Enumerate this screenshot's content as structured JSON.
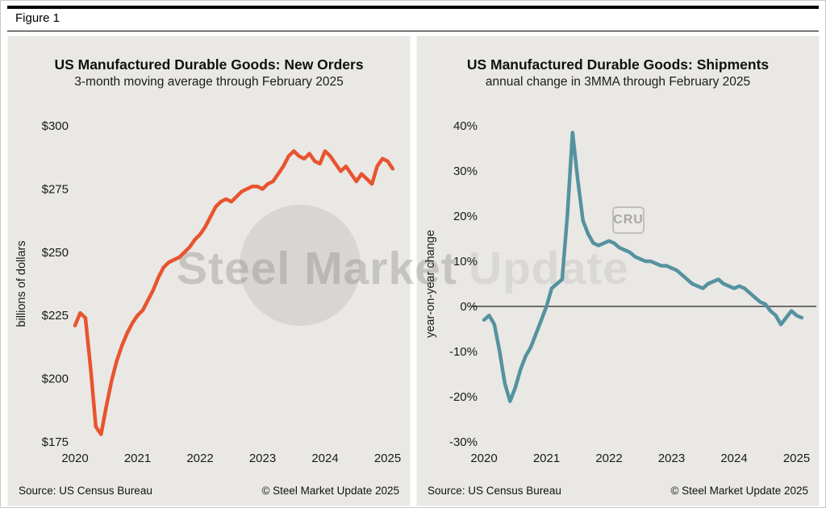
{
  "figure": {
    "label": "Figure 1"
  },
  "watermark": {
    "part1": "Steel Market",
    "part2": "Update",
    "cru": "CRU"
  },
  "chart_data": [
    {
      "type": "line",
      "title": "US Manufactured Durable Goods: New Orders",
      "subtitle": "3-month moving average through February 2025",
      "ylabel": "billions of dollars",
      "xlabel": "",
      "xlim": [
        2020,
        2025.35
      ],
      "ylim": [
        175,
        300
      ],
      "x_ticks": [
        2020,
        2021,
        2022,
        2023,
        2024,
        2025
      ],
      "x_tick_labels": [
        "2020",
        "2021",
        "2022",
        "2023",
        "2024",
        "2025"
      ],
      "y_ticks": [
        175,
        200,
        225,
        250,
        275,
        300
      ],
      "y_tick_labels": [
        "$175",
        "$200",
        "$225",
        "$250",
        "$275",
        "$300"
      ],
      "grid": false,
      "legend": "none",
      "zero_line": false,
      "line_color": "#e8542e",
      "source": "Source: US Census Bureau",
      "copyright": "© Steel Market Update 2025",
      "x": [
        2020.0,
        2020.083,
        2020.167,
        2020.25,
        2020.333,
        2020.417,
        2020.5,
        2020.583,
        2020.667,
        2020.75,
        2020.833,
        2020.917,
        2021.0,
        2021.083,
        2021.167,
        2021.25,
        2021.333,
        2021.417,
        2021.5,
        2021.583,
        2021.667,
        2021.75,
        2021.833,
        2021.917,
        2022.0,
        2022.083,
        2022.167,
        2022.25,
        2022.333,
        2022.417,
        2022.5,
        2022.583,
        2022.667,
        2022.75,
        2022.833,
        2022.917,
        2023.0,
        2023.083,
        2023.167,
        2023.25,
        2023.333,
        2023.417,
        2023.5,
        2023.583,
        2023.667,
        2023.75,
        2023.833,
        2023.917,
        2024.0,
        2024.083,
        2024.167,
        2024.25,
        2024.333,
        2024.417,
        2024.5,
        2024.583,
        2024.667,
        2024.75,
        2024.833,
        2024.917,
        2025.0,
        2025.083
      ],
      "values": [
        221,
        226,
        224,
        204,
        181,
        178,
        189,
        199,
        207,
        213,
        218,
        222,
        225,
        227,
        231,
        235,
        240,
        244,
        246,
        247,
        248,
        250,
        252,
        255,
        257,
        260,
        264,
        268,
        270,
        271,
        270,
        272,
        274,
        275,
        276,
        276,
        275,
        277,
        278,
        281,
        284,
        288,
        290,
        288,
        287,
        289,
        286,
        285,
        290,
        288,
        285,
        282,
        284,
        281,
        278,
        281,
        279,
        277,
        284,
        287,
        286,
        283
      ]
    },
    {
      "type": "line",
      "title": "US Manufactured Durable Goods: Shipments",
      "subtitle": "annual change in 3MMA through February 2025",
      "ylabel": "year-on-year change",
      "xlabel": "",
      "xlim": [
        2020,
        2025.35
      ],
      "ylim": [
        -30,
        40
      ],
      "x_ticks": [
        2020,
        2021,
        2022,
        2023,
        2024,
        2025
      ],
      "x_tick_labels": [
        "2020",
        "2021",
        "2022",
        "2023",
        "2024",
        "2025"
      ],
      "y_ticks": [
        -30,
        -20,
        -10,
        0,
        10,
        20,
        30,
        40
      ],
      "y_tick_labels": [
        "-30%",
        "-20%",
        "-10%",
        "0%",
        "10%",
        "20%",
        "30%",
        "40%"
      ],
      "grid": false,
      "legend": "none",
      "zero_line": true,
      "line_color": "#5592a0",
      "source": "Source: US Census Bureau",
      "copyright": "© Steel Market Update 2025",
      "x": [
        2020.0,
        2020.083,
        2020.167,
        2020.25,
        2020.333,
        2020.417,
        2020.5,
        2020.583,
        2020.667,
        2020.75,
        2020.833,
        2020.917,
        2021.0,
        2021.083,
        2021.167,
        2021.25,
        2021.333,
        2021.417,
        2021.5,
        2021.583,
        2021.667,
        2021.75,
        2021.833,
        2021.917,
        2022.0,
        2022.083,
        2022.167,
        2022.25,
        2022.333,
        2022.417,
        2022.5,
        2022.583,
        2022.667,
        2022.75,
        2022.833,
        2022.917,
        2023.0,
        2023.083,
        2023.167,
        2023.25,
        2023.333,
        2023.417,
        2023.5,
        2023.583,
        2023.667,
        2023.75,
        2023.833,
        2023.917,
        2024.0,
        2024.083,
        2024.167,
        2024.25,
        2024.333,
        2024.417,
        2024.5,
        2024.583,
        2024.667,
        2024.75,
        2024.833,
        2024.917,
        2025.0,
        2025.083
      ],
      "values": [
        -3,
        -2,
        -4,
        -10,
        -17,
        -21,
        -18,
        -14,
        -11,
        -9,
        -6,
        -3,
        0,
        4,
        5,
        6,
        20,
        38.5,
        28,
        19,
        16,
        14,
        13.5,
        14,
        14.5,
        14,
        13,
        12.5,
        12,
        11,
        10.5,
        10,
        10,
        9.5,
        9,
        9,
        8.5,
        8,
        7,
        6,
        5,
        4.5,
        4,
        5,
        5.5,
        6,
        5,
        4.5,
        4,
        4.5,
        4,
        3,
        2,
        1,
        0.5,
        -1,
        -2,
        -4,
        -2.5,
        -1,
        -2,
        -2.5
      ]
    }
  ]
}
